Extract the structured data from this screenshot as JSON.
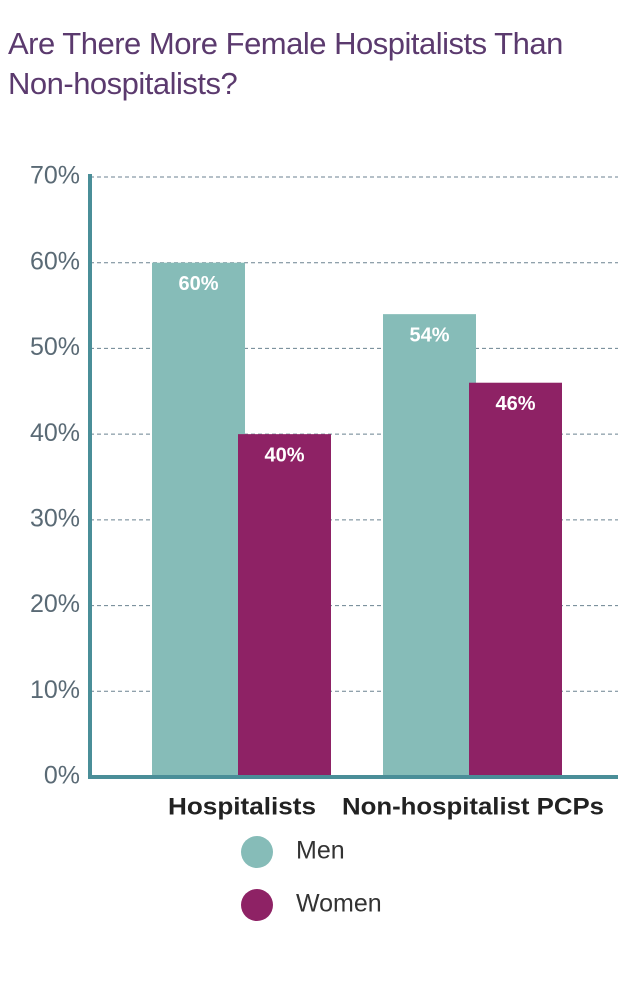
{
  "chart_data": {
    "type": "bar",
    "title": "Are There More Female Hospitalists Than Non-hospitalists?",
    "categories": [
      "Hospitalists",
      "Non-hospitalist PCPs"
    ],
    "series": [
      {
        "name": "Men",
        "color": "#86bcb8",
        "values": [
          60,
          54
        ],
        "value_labels": [
          "60%",
          "54%"
        ]
      },
      {
        "name": "Women",
        "color": "#8e2265",
        "values": [
          40,
          46
        ],
        "value_labels": [
          "40%",
          "46%"
        ]
      }
    ],
    "ylim": [
      0,
      70
    ],
    "yticks": [
      {
        "value": 0,
        "label": "0%"
      },
      {
        "value": 10,
        "label": "10%"
      },
      {
        "value": 20,
        "label": "20%"
      },
      {
        "value": 30,
        "label": "30%"
      },
      {
        "value": 40,
        "label": "40%"
      },
      {
        "value": 50,
        "label": "50%"
      },
      {
        "value": 60,
        "label": "60%"
      },
      {
        "value": 70,
        "label": "70%"
      }
    ],
    "grid": true
  }
}
